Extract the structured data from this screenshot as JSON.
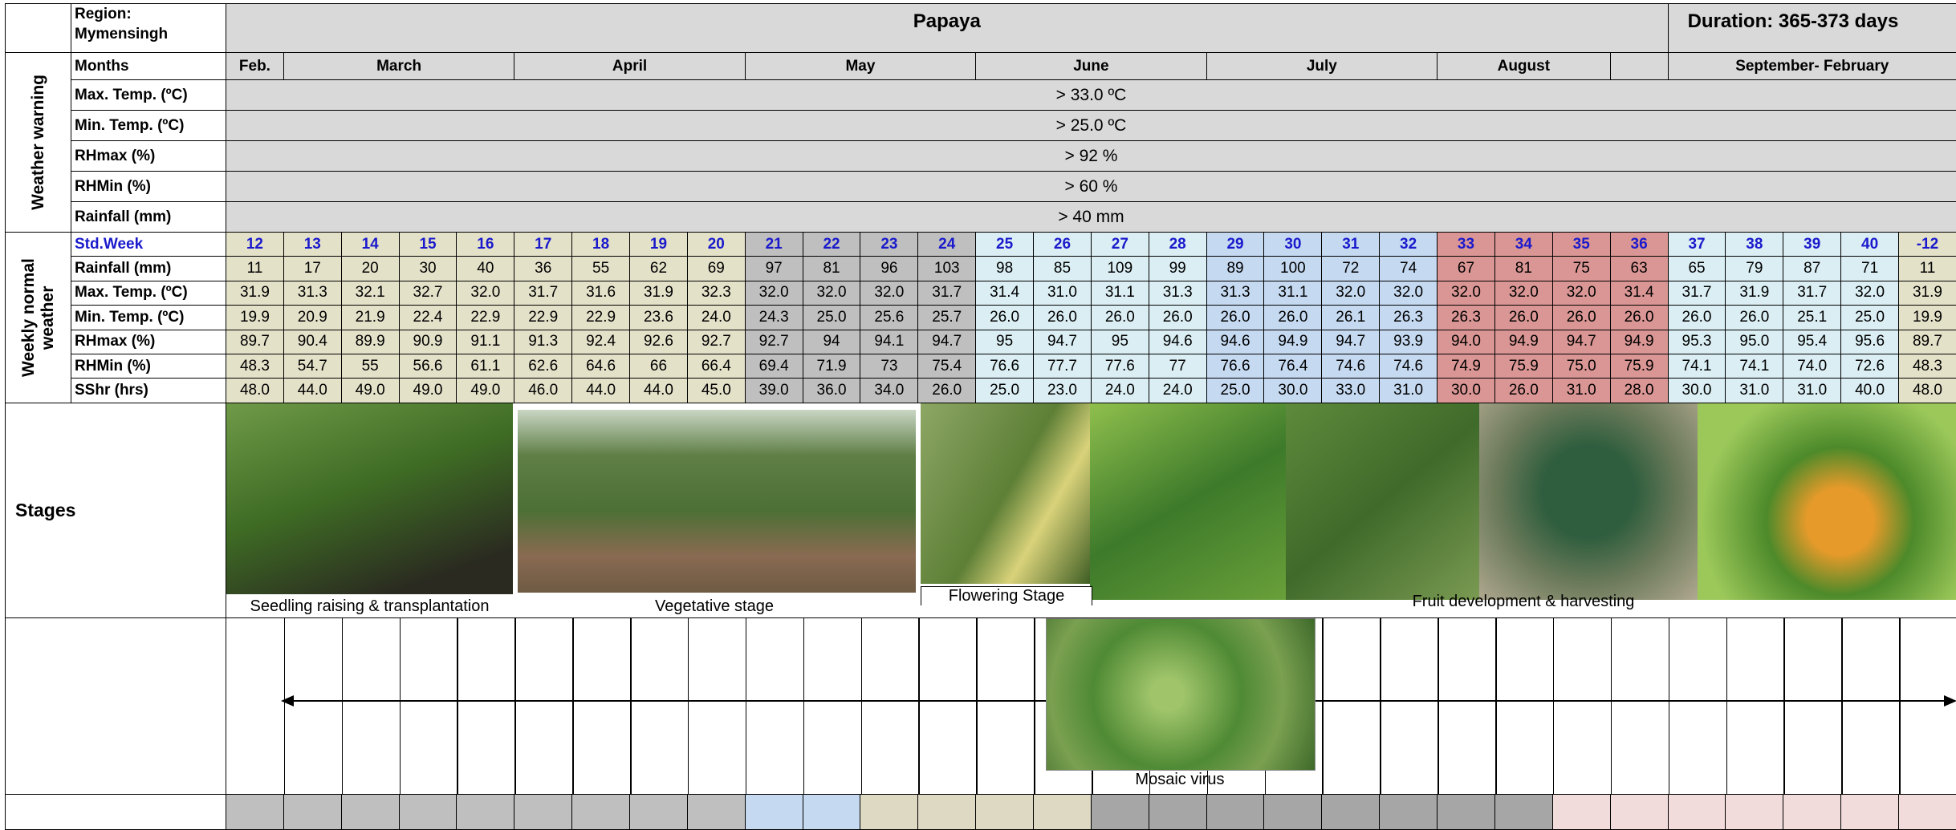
{
  "header": {
    "region": "Region: Mymensingh",
    "crop": "Papaya",
    "duration": "Duration: 365-373 days"
  },
  "months": {
    "label": "Months",
    "names": [
      "Feb.",
      "March",
      "April",
      "May",
      "June",
      "July",
      "August",
      "September- February"
    ]
  },
  "weather_warning": {
    "title": "Weather warning",
    "rows": [
      {
        "label": "Max. Temp. (ºC)",
        "value": "> 33.0 ºC"
      },
      {
        "label": "Min. Temp. (ºC)",
        "value": "> 25.0 ºC"
      },
      {
        "label": "RHmax (%)",
        "value": "> 92 %"
      },
      {
        "label": "RHMin (%)",
        "value": "> 60 %"
      },
      {
        "label": "Rainfall (mm)",
        "value": "> 40 mm"
      }
    ]
  },
  "weekly_normal": {
    "title": "Weekly normal weather",
    "rows": [
      {
        "label": "Std.Week",
        "values": [
          "12",
          "13",
          "14",
          "15",
          "16",
          "17",
          "18",
          "19",
          "20",
          "21",
          "22",
          "23",
          "24",
          "25",
          "26",
          "27",
          "28",
          "29",
          "30",
          "31",
          "32",
          "33",
          "34",
          "35",
          "36",
          "37",
          "38",
          "39",
          "40",
          "-12"
        ]
      },
      {
        "label": "Rainfall (mm)",
        "values": [
          "11",
          "17",
          "20",
          "30",
          "40",
          "36",
          "55",
          "62",
          "69",
          "97",
          "81",
          "96",
          "103",
          "98",
          "85",
          "109",
          "99",
          "89",
          "100",
          "72",
          "74",
          "67",
          "81",
          "75",
          "63",
          "65",
          "79",
          "87",
          "71",
          "11"
        ]
      },
      {
        "label": "Max. Temp. (ºC)",
        "values": [
          "31.9",
          "31.3",
          "32.1",
          "32.7",
          "32.0",
          "31.7",
          "31.6",
          "31.9",
          "32.3",
          "32.0",
          "32.0",
          "32.0",
          "31.7",
          "31.4",
          "31.0",
          "31.1",
          "31.3",
          "31.3",
          "31.1",
          "32.0",
          "32.0",
          "32.0",
          "32.0",
          "32.0",
          "31.4",
          "31.7",
          "31.9",
          "31.7",
          "32.0",
          "31.9"
        ]
      },
      {
        "label": "Min. Temp. (ºC)",
        "values": [
          "19.9",
          "20.9",
          "21.9",
          "22.4",
          "22.9",
          "22.9",
          "22.9",
          "23.6",
          "24.0",
          "24.3",
          "25.0",
          "25.6",
          "25.7",
          "26.0",
          "26.0",
          "26.0",
          "26.0",
          "26.0",
          "26.0",
          "26.1",
          "26.3",
          "26.3",
          "26.0",
          "26.0",
          "26.0",
          "26.0",
          "26.0",
          "25.1",
          "25.0",
          "19.9"
        ]
      },
      {
        "label": "RHmax (%)",
        "values": [
          "89.7",
          "90.4",
          "89.9",
          "90.9",
          "91.1",
          "91.3",
          "92.4",
          "92.6",
          "92.7",
          "92.7",
          "94",
          "94.1",
          "94.7",
          "95",
          "94.7",
          "95",
          "94.6",
          "94.6",
          "94.9",
          "94.7",
          "93.9",
          "94.0",
          "94.9",
          "94.7",
          "94.9",
          "95.3",
          "95.0",
          "95.4",
          "95.6",
          "89.7"
        ]
      },
      {
        "label": "RHMin (%)",
        "values": [
          "48.3",
          "54.7",
          "55",
          "56.6",
          "61.1",
          "62.6",
          "64.6",
          "66",
          "66.4",
          "69.4",
          "71.9",
          "73",
          "75.4",
          "76.6",
          "77.7",
          "77.6",
          "77",
          "76.6",
          "76.4",
          "74.6",
          "74.6",
          "74.9",
          "75.9",
          "75.0",
          "75.9",
          "74.1",
          "74.1",
          "74.0",
          "72.6",
          "48.3"
        ]
      },
      {
        "label": "SShr (hrs)",
        "values": [
          "48.0",
          "44.0",
          "49.0",
          "49.0",
          "49.0",
          "46.0",
          "44.0",
          "44.0",
          "45.0",
          "39.0",
          "36.0",
          "34.0",
          "26.0",
          "25.0",
          "23.0",
          "24.0",
          "24.0",
          "25.0",
          "30.0",
          "33.0",
          "31.0",
          "30.0",
          "26.0",
          "31.0",
          "28.0",
          "30.0",
          "31.0",
          "31.0",
          "40.0",
          "48.0"
        ]
      }
    ]
  },
  "stages": {
    "title": "Stages",
    "captions": [
      "Seedling raising & transplantation",
      "Vegetative stage",
      "Flowering Stage",
      "Fruit development & harvesting"
    ]
  },
  "disease": {
    "caption": "Mosaic virus"
  }
}
